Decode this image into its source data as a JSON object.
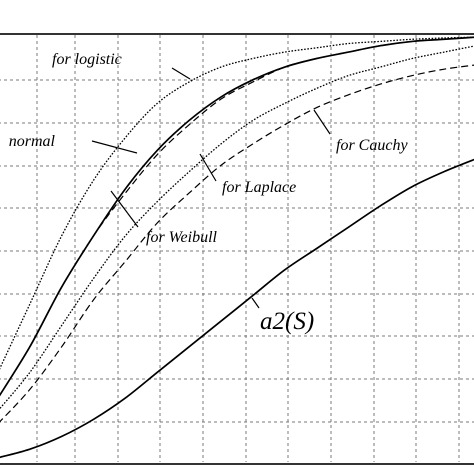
{
  "chart_data": {
    "type": "line",
    "title": "",
    "xlabel": "",
    "ylabel": "",
    "xlim": [
      0,
      15
    ],
    "ylim": [
      0,
      1
    ],
    "grid": true,
    "legend": "none",
    "series": [
      {
        "name": "for logistic",
        "style": "dotted",
        "x": [
          0,
          1,
          2,
          3,
          4,
          5,
          6,
          7,
          8,
          9,
          10,
          11,
          12,
          13,
          14,
          15
        ],
        "y": [
          0.21,
          0.37,
          0.53,
          0.66,
          0.76,
          0.84,
          0.89,
          0.925,
          0.945,
          0.96,
          0.97,
          0.98,
          0.985,
          0.99,
          0.993,
          0.995
        ]
      },
      {
        "name": "normal",
        "style": "solid",
        "x": [
          0,
          1,
          2,
          3,
          4,
          5,
          6,
          7,
          8,
          9,
          10,
          11,
          12,
          13,
          14,
          15
        ],
        "y": [
          0.15,
          0.27,
          0.41,
          0.53,
          0.64,
          0.73,
          0.8,
          0.855,
          0.895,
          0.925,
          0.945,
          0.96,
          0.975,
          0.985,
          0.99,
          0.995
        ]
      },
      {
        "name": "for Weibull",
        "style": "dashed",
        "x": [
          0,
          1,
          2,
          3,
          4,
          5,
          6,
          7,
          8,
          9,
          10,
          11,
          12,
          13,
          14,
          15
        ],
        "y": [
          0.15,
          0.27,
          0.41,
          0.53,
          0.63,
          0.72,
          0.79,
          0.85,
          0.89,
          0.925,
          0.945,
          0.96,
          0.975,
          0.985,
          0.99,
          0.995
        ]
      },
      {
        "name": "for Laplace",
        "style": "dotted",
        "x": [
          0,
          1,
          2,
          3,
          4,
          5,
          6,
          7,
          8,
          9,
          10,
          11,
          12,
          13,
          14,
          15
        ],
        "y": [
          0.12,
          0.21,
          0.32,
          0.43,
          0.53,
          0.61,
          0.68,
          0.745,
          0.8,
          0.84,
          0.875,
          0.905,
          0.925,
          0.945,
          0.96,
          0.975
        ]
      },
      {
        "name": "for Cauchy",
        "style": "dashed",
        "x": [
          0,
          1,
          2,
          3,
          4,
          5,
          6,
          7,
          8,
          9,
          10,
          11,
          12,
          13,
          14,
          15
        ],
        "y": [
          0.09,
          0.17,
          0.27,
          0.38,
          0.47,
          0.56,
          0.63,
          0.695,
          0.745,
          0.79,
          0.83,
          0.86,
          0.885,
          0.905,
          0.92,
          0.93
        ]
      },
      {
        "name": "a2(S)",
        "style": "solid",
        "x": [
          0,
          1,
          2,
          3,
          4,
          5,
          6,
          7,
          8,
          9,
          10,
          11,
          12,
          13,
          14,
          15
        ],
        "y": [
          0.01,
          0.03,
          0.06,
          0.1,
          0.15,
          0.21,
          0.27,
          0.33,
          0.39,
          0.45,
          0.5,
          0.55,
          0.6,
          0.645,
          0.68,
          0.71
        ]
      }
    ],
    "annotations": [
      {
        "text": "for logistic",
        "target": "for logistic",
        "x": 5.6,
        "y": 0.82
      },
      {
        "text": "normal",
        "target": "normal",
        "x": 4.5,
        "y": 0.69
      },
      {
        "text": "for Weibull",
        "target": "for Weibull",
        "x": 3.5,
        "y": 0.58
      },
      {
        "text": "for Laplace",
        "target": "for Laplace",
        "x": 6.5,
        "y": 0.65
      },
      {
        "text": "for Cauchy",
        "target": "for Cauchy",
        "x": 9.9,
        "y": 0.81
      },
      {
        "text": "a2(S)",
        "target": "a2(S)",
        "x": 8.2,
        "y": 0.385
      }
    ]
  }
}
